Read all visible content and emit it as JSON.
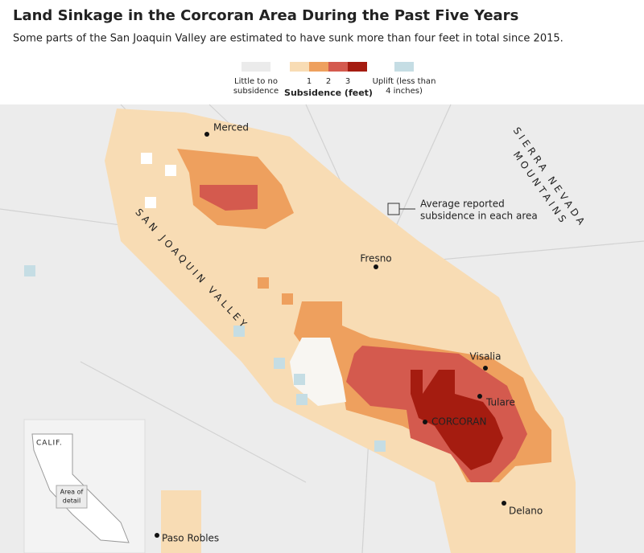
{
  "header": {
    "title": "Land Sinkage in the Corcoran Area During the Past Five Years",
    "subtitle": "Some parts of the San Joaquin Valley are estimated to have sunk more than four feet in total since 2015."
  },
  "legend": {
    "none": {
      "label_lines": [
        "Little to no",
        "subsidence"
      ],
      "color": "#ebebeb"
    },
    "subsidence": {
      "title": "Subsidence (feet)",
      "ticks": [
        1,
        2,
        3
      ],
      "colors": [
        "#f8dcb4",
        "#eea05e",
        "#d45a4e",
        "#a51c10"
      ]
    },
    "uplift": {
      "label_lines": [
        "Uplift (less than",
        "4 inches)"
      ],
      "color": "#c5dde4"
    }
  },
  "map": {
    "cities": [
      {
        "name": "Merced"
      },
      {
        "name": "Fresno"
      },
      {
        "name": "Visalia"
      },
      {
        "name": "Tulare"
      },
      {
        "name": "CORCORAN"
      },
      {
        "name": "Delano"
      },
      {
        "name": "Paso Robles"
      }
    ],
    "region_labels": [
      {
        "lines": [
          "SAN JOAQUIN VALLEY"
        ]
      },
      {
        "lines": [
          "SIERRA NEVADA",
          "MOUNTAINS"
        ]
      }
    ],
    "annotation": {
      "lines": [
        "Average reported",
        "subsidence in each area"
      ]
    },
    "inset": {
      "state": "CALIF.",
      "detail_lines": [
        "Area of",
        "detail"
      ]
    }
  }
}
